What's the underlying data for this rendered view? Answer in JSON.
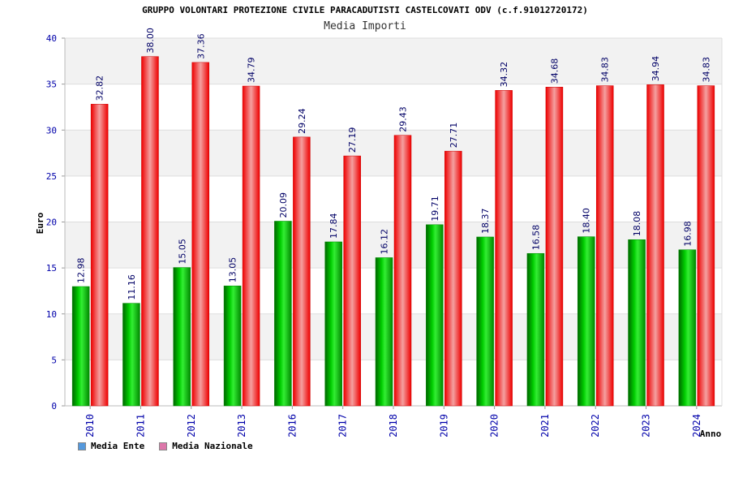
{
  "title": "GRUPPO VOLONTARI PROTEZIONE CIVILE PARACADUTISTI CASTELCOVATI ODV (c.f.91012720172)",
  "subtitle": "Media Importi",
  "colors": {
    "ente": "#00a800",
    "nazionale": "#e8202a",
    "legend_ente": "#5599dd",
    "legend_nazionale": "#dd77aa",
    "axis_text": "#0000aa",
    "band": "#f2f2f2"
  },
  "chart_data": {
    "type": "bar",
    "title": "GRUPPO VOLONTARI PROTEZIONE CIVILE PARACADUTISTI CASTELCOVATI ODV (c.f.91012720172)",
    "subtitle": "Media Importi",
    "xlabel": "Anno",
    "ylabel": "Euro",
    "ylim": [
      0,
      40
    ],
    "yticks": [
      "0",
      "5",
      "10",
      "15",
      "20",
      "25",
      "30",
      "35",
      "40"
    ],
    "categories": [
      "2010",
      "2011",
      "2012",
      "2013",
      "2016",
      "2017",
      "2018",
      "2019",
      "2020",
      "2021",
      "2022",
      "2023",
      "2024"
    ],
    "series": [
      {
        "name": "Media Ente",
        "values": [
          12.98,
          11.16,
          15.05,
          13.05,
          20.09,
          17.84,
          16.12,
          19.71,
          18.37,
          16.58,
          18.4,
          18.08,
          16.98
        ],
        "labels": [
          "12.98",
          "11.16",
          "15.05",
          "13.05",
          "20.09",
          "17.84",
          "16.12",
          "19.71",
          "18.37",
          "16.58",
          "18.40",
          "18.08",
          "16.98"
        ]
      },
      {
        "name": "Media Nazionale",
        "values": [
          32.82,
          38.0,
          37.36,
          34.79,
          29.24,
          27.19,
          29.43,
          27.71,
          34.32,
          34.68,
          34.83,
          34.94,
          34.83
        ],
        "labels": [
          "32.82",
          "38.00",
          "37.36",
          "34.79",
          "29.24",
          "27.19",
          "29.43",
          "27.71",
          "34.32",
          "34.68",
          "34.83",
          "34.94",
          "34.83"
        ]
      }
    ],
    "grid": true,
    "legend_position": "bottom-left"
  }
}
